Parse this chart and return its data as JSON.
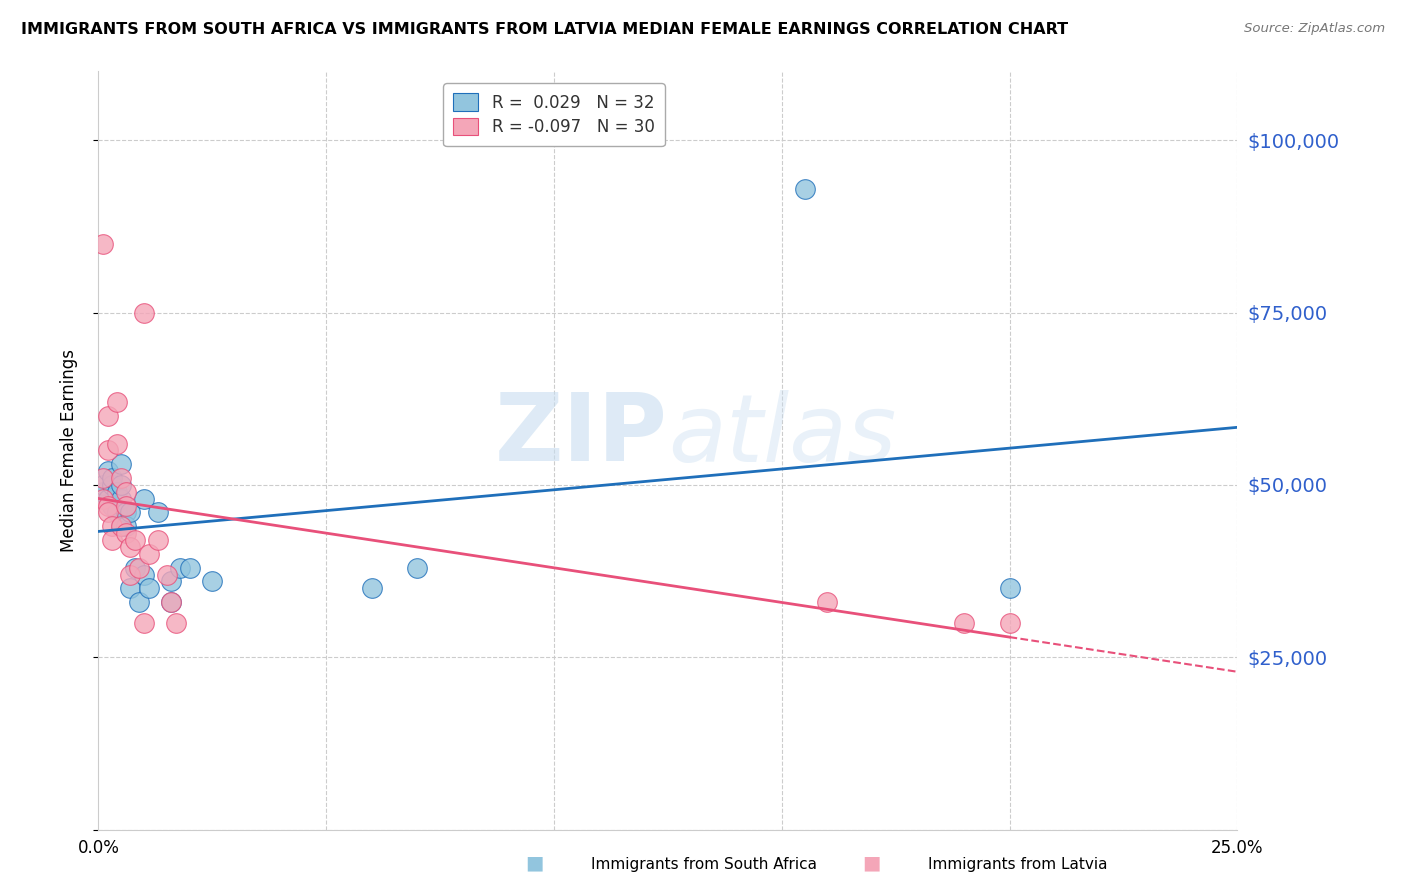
{
  "title": "IMMIGRANTS FROM SOUTH AFRICA VS IMMIGRANTS FROM LATVIA MEDIAN FEMALE EARNINGS CORRELATION CHART",
  "source": "Source: ZipAtlas.com",
  "ylabel": "Median Female Earnings",
  "yticks": [
    0,
    25000,
    50000,
    75000,
    100000
  ],
  "ytick_labels": [
    "",
    "$25,000",
    "$50,000",
    "$75,000",
    "$100,000"
  ],
  "xlim": [
    0.0,
    0.25
  ],
  "ylim": [
    0,
    110000
  ],
  "legend_r1": "R =  0.029",
  "legend_n1": "N = 32",
  "legend_r2": "R = -0.097",
  "legend_n2": "N = 30",
  "color_blue": "#92c5de",
  "color_pink": "#f4a6b8",
  "color_blue_line": "#1f6fba",
  "color_pink_line": "#e8507a",
  "color_axis_label": "#3060cc",
  "watermark_zip": "ZIP",
  "watermark_atlas": "atlas",
  "south_africa_x": [
    0.001,
    0.001,
    0.002,
    0.002,
    0.003,
    0.003,
    0.003,
    0.004,
    0.004,
    0.005,
    0.005,
    0.005,
    0.005,
    0.006,
    0.006,
    0.007,
    0.007,
    0.008,
    0.009,
    0.01,
    0.01,
    0.011,
    0.013,
    0.016,
    0.016,
    0.018,
    0.02,
    0.025,
    0.06,
    0.07,
    0.155,
    0.2
  ],
  "south_africa_y": [
    49000,
    50000,
    52000,
    48000,
    50000,
    47000,
    51000,
    49000,
    46000,
    48000,
    44000,
    53000,
    50000,
    46000,
    44000,
    46000,
    35000,
    38000,
    33000,
    37000,
    48000,
    35000,
    46000,
    36000,
    33000,
    38000,
    38000,
    36000,
    35000,
    38000,
    93000,
    35000
  ],
  "latvia_x": [
    0.001,
    0.001,
    0.001,
    0.002,
    0.002,
    0.002,
    0.002,
    0.003,
    0.003,
    0.004,
    0.004,
    0.005,
    0.005,
    0.006,
    0.006,
    0.006,
    0.007,
    0.007,
    0.008,
    0.009,
    0.01,
    0.01,
    0.011,
    0.013,
    0.015,
    0.016,
    0.017,
    0.16,
    0.19,
    0.2
  ],
  "latvia_y": [
    85000,
    51000,
    48000,
    60000,
    55000,
    47000,
    46000,
    44000,
    42000,
    62000,
    56000,
    51000,
    44000,
    49000,
    47000,
    43000,
    41000,
    37000,
    42000,
    38000,
    75000,
    30000,
    40000,
    42000,
    37000,
    33000,
    30000,
    33000,
    30000,
    30000
  ]
}
